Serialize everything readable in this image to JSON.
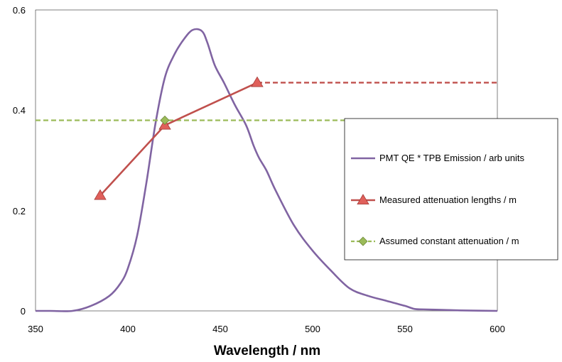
{
  "chart_data": {
    "type": "line",
    "title": "",
    "xlabel": "Wavelength / nm",
    "ylabel": "",
    "xlim": [
      350,
      600
    ],
    "ylim": [
      0,
      0.6
    ],
    "xticks": [
      "350",
      "400",
      "450",
      "500",
      "550",
      "600"
    ],
    "yticks": [
      "0",
      "0.2",
      "0.4",
      "0.6"
    ],
    "grid": false,
    "legend_position": "right",
    "series": [
      {
        "name": "PMT QE * TPB Emission / arb units",
        "color": "#8064a2",
        "marker": "none",
        "x": [
          350,
          358,
          370,
          380,
          390,
          396,
          400,
          405,
          410,
          415,
          420,
          425,
          430,
          435,
          440,
          443,
          447,
          452,
          458,
          464,
          468,
          471,
          475,
          480,
          490,
          500,
          510,
          520,
          530,
          540,
          550,
          555,
          560,
          570,
          580,
          590,
          600
        ],
        "y": [
          0.0,
          0.0,
          -0.005,
          0.01,
          0.03,
          0.055,
          0.085,
          0.15,
          0.255,
          0.375,
          0.465,
          0.51,
          0.54,
          0.56,
          0.558,
          0.535,
          0.49,
          0.455,
          0.41,
          0.37,
          0.33,
          0.305,
          0.28,
          0.24,
          0.17,
          0.12,
          0.08,
          0.045,
          0.03,
          0.02,
          0.01,
          0.004,
          0.003,
          0.002,
          0.001,
          0.0005,
          0.0
        ]
      },
      {
        "name": "Measured attenuation lengths / m",
        "color": "#c0504d",
        "marker": "triangle",
        "x": [
          385,
          420,
          470
        ],
        "y": [
          0.23,
          0.37,
          0.455
        ],
        "extension": {
          "from": 470,
          "to": 600,
          "y": 0.455,
          "style": "dashed"
        }
      },
      {
        "name": "Assumed constant attenuation / m",
        "color": "#9bbb59",
        "marker": "diamond",
        "marker_color": "#9bbb59",
        "x": [
          420
        ],
        "y": [
          0.38
        ],
        "line": {
          "from": 350,
          "to": 600,
          "y": 0.38,
          "style": "dashed"
        }
      }
    ]
  }
}
